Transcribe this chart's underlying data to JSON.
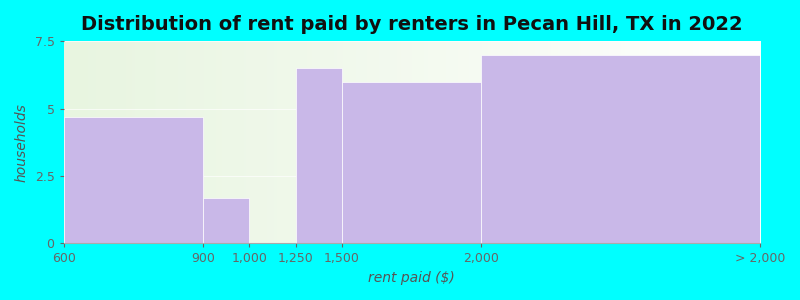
{
  "title": "Distribution of rent paid by renters in Pecan Hill, TX in 2022",
  "xlabel": "rent paid ($)",
  "ylabel": "households",
  "tick_labels": [
    "600",
    "900",
    "1,000",
    "1,250",
    "1,500",
    "2,000",
    "> 2,000"
  ],
  "tick_positions": [
    0,
    1,
    1.333,
    1.667,
    2,
    3,
    5
  ],
  "bar_lefts": [
    0,
    1,
    1.667,
    2,
    3
  ],
  "bar_rights": [
    1,
    1.333,
    2,
    3,
    5
  ],
  "bar_values": [
    4.7,
    1.7,
    6.5,
    6.0,
    7.0
  ],
  "bar_color": "#c9b8e8",
  "background_color": "#00ffff",
  "plot_bg_left_color": "#e8f5e0",
  "plot_bg_right_color": "#ffffff",
  "ylim": [
    0,
    7.5
  ],
  "yticks": [
    0,
    2.5,
    5,
    7.5
  ],
  "title_fontsize": 14,
  "axis_label_fontsize": 10,
  "tick_fontsize": 9
}
